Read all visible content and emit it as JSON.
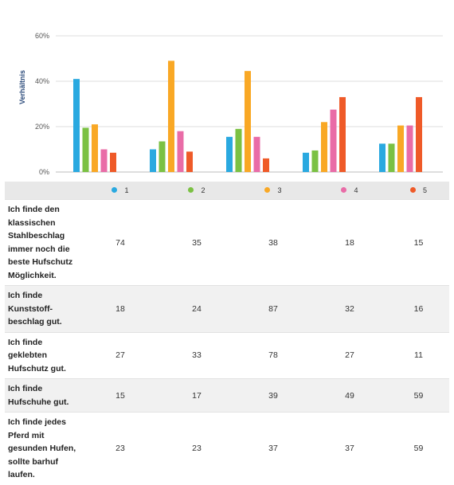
{
  "chart_data": {
    "type": "bar",
    "ylabel": "Verhältnis",
    "yticks": [
      "0%",
      "20%",
      "40%",
      "60%"
    ],
    "ylim": [
      0,
      60
    ],
    "grid": true,
    "legend_position": "bottom",
    "categories": [
      "Ich finde den klassischen Stahlbeschlag immer noch die beste Hufschutz Möglichkeit.",
      "Ich finde Kunststoff-beschlag gut.",
      "Ich finde geklebten Hufschutz gut.",
      "Ich finde Hufschuhe gut.",
      "Ich finde jedes Pferd mit gesunden Hufen, sollte barhuf laufen."
    ],
    "series": [
      {
        "name": "1",
        "color": "#2aa9e0",
        "values": [
          41,
          10,
          15.5,
          8.5,
          12.5
        ]
      },
      {
        "name": "2",
        "color": "#7bc143",
        "values": [
          19.5,
          13.5,
          19,
          9.5,
          12.5
        ]
      },
      {
        "name": "3",
        "color": "#f9a825",
        "values": [
          21,
          49,
          44.5,
          22,
          20.5
        ]
      },
      {
        "name": "4",
        "color": "#e96ca7",
        "values": [
          10,
          18,
          15.5,
          27.5,
          20.5
        ]
      },
      {
        "name": "5",
        "color": "#ef5a28",
        "values": [
          8.5,
          9,
          6,
          33,
          33
        ]
      }
    ]
  },
  "table": {
    "rows": [
      {
        "label": "Ich finde den klassischen Stahlbeschlag immer noch die beste Hufschutz Möglichkeit.",
        "values": [
          "74",
          "35",
          "38",
          "18",
          "15"
        ]
      },
      {
        "label": "Ich finde Kunststoff-beschlag gut.",
        "values": [
          "18",
          "24",
          "87",
          "32",
          "16"
        ]
      },
      {
        "label": "Ich finde geklebten Hufschutz gut.",
        "values": [
          "27",
          "33",
          "78",
          "27",
          "11"
        ]
      },
      {
        "label": "Ich finde Hufschuhe gut.",
        "values": [
          "15",
          "17",
          "39",
          "49",
          "59"
        ]
      },
      {
        "label": "Ich finde jedes Pferd mit gesunden Hufen, sollte barhuf laufen.",
        "values": [
          "23",
          "23",
          "37",
          "37",
          "59"
        ]
      }
    ]
  }
}
